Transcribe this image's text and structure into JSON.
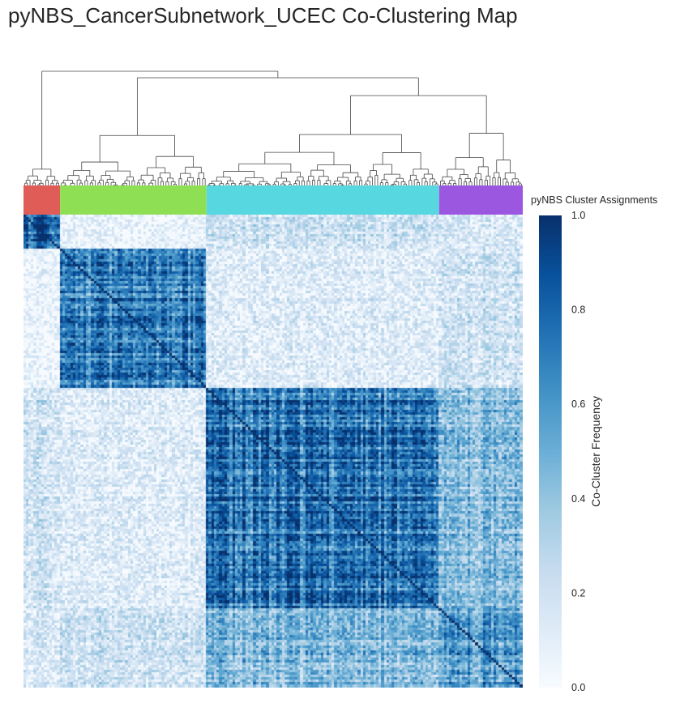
{
  "chart_data": {
    "type": "heatmap",
    "title": "pyNBS_CancerSubnetwork_UCEC Co-Clustering Map",
    "row_annotation_label": "pyNBS Cluster Assignments",
    "clusters": [
      {
        "size": 14,
        "color": "#e05c57"
      },
      {
        "size": 56,
        "color": "#8fdf55"
      },
      {
        "size": 89,
        "color": "#57d7df"
      },
      {
        "size": 32,
        "color": "#9b57df"
      }
    ],
    "colorbar": {
      "label": "Co-Cluster Frequency",
      "min": 0.0,
      "max": 1.0,
      "ticks": [
        "0.0",
        "0.2",
        "0.4",
        "0.6",
        "0.8",
        "1.0"
      ],
      "colormap": [
        "#f7fbff",
        "#deebf7",
        "#c6dbef",
        "#9ecae1",
        "#6baed6",
        "#4292c6",
        "#2171b5",
        "#08519c",
        "#08306b"
      ]
    },
    "diagonal_value": 1.0,
    "block_means": [
      [
        0.85,
        0.05,
        0.2,
        0.15
      ],
      [
        0.05,
        0.7,
        0.12,
        0.2
      ],
      [
        0.2,
        0.12,
        0.75,
        0.45
      ],
      [
        0.15,
        0.2,
        0.45,
        0.6
      ]
    ]
  }
}
